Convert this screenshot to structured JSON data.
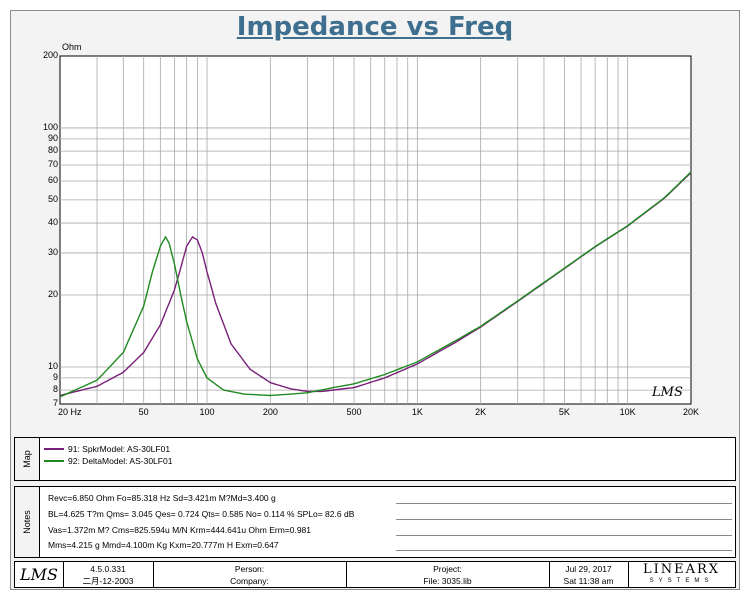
{
  "title": "Impedance vs Freq",
  "y_unit": "Ohm",
  "y_ticks": [
    "200",
    "100",
    "90",
    "80",
    "70",
    "60",
    "50",
    "40",
    "30",
    "20",
    "10",
    "9",
    "8",
    "7"
  ],
  "x_ticks": [
    "20 Hz",
    "50",
    "100",
    "200",
    "500",
    "1K",
    "2K",
    "5K",
    "10K",
    "20K"
  ],
  "watermark": "LMS",
  "legend": [
    {
      "label": "91: SpkrModel: AS-30LF01",
      "color": "#7a1f7a"
    },
    {
      "label": "92: DeltaModel: AS-30LF01",
      "color": "#1f8a1f"
    }
  ],
  "side_labels": {
    "map": "Map",
    "notes": "Notes"
  },
  "notes": [
    "Revc=6.850 Ohm  Fo=85.318 Hz  Sd=3.421m M?Md=3.400 g",
    "BL=4.625 T?m  Qms= 3.045  Qes= 0.724  Qts= 0.585  No= 0.114 %  SPLo= 82.6 dB",
    "Vas=1.372m M? Cms=825.594u M/N  Krm=444.641u Ohm  Erm=0.981",
    "Mms=4.215 g  Mmd=4.100m Kg  Kxm=20.777m H  Exm=0.647"
  ],
  "footer": {
    "logo": "LMS",
    "version": "4.5.0.331",
    "date_build": "二月-12-2003",
    "person": "Person:",
    "company": "Company:",
    "project": "Project:",
    "file": "File: 3035.lib",
    "date": "Jul 29, 2017",
    "time": "Sat 11:38 am",
    "brand": "LINEARX",
    "brand_sub": "SYSTEMS"
  },
  "colors": {
    "series1": "#7a1f7a",
    "series2": "#1f8a1f",
    "title": "#3f6f8f"
  },
  "chart_data": {
    "type": "line",
    "title": "Impedance vs Freq",
    "xlabel": "Hz",
    "ylabel": "Ohm",
    "xscale": "log",
    "yscale": "log",
    "xlim": [
      20,
      20000
    ],
    "ylim": [
      7,
      200
    ],
    "series": [
      {
        "name": "91: SpkrModel: AS-30LF01",
        "color": "#7a1f7a",
        "x": [
          20,
          30,
          40,
          50,
          60,
          70,
          75,
          80,
          85.3,
          90,
          95,
          100,
          110,
          130,
          160,
          200,
          250,
          300,
          350,
          500,
          700,
          1000,
          1500,
          2000,
          3000,
          5000,
          7000,
          10000,
          15000,
          20000
        ],
        "y": [
          7.6,
          8.3,
          9.5,
          11.5,
          15,
          21,
          26,
          32,
          35,
          34,
          30,
          25,
          18.5,
          12.5,
          9.8,
          8.6,
          8.1,
          7.9,
          7.9,
          8.2,
          9.0,
          10.3,
          12.6,
          14.7,
          18.8,
          25.8,
          31.8,
          38.9,
          51,
          65
        ]
      },
      {
        "name": "92: DeltaModel: AS-30LF01",
        "color": "#1f8a1f",
        "x": [
          20,
          30,
          40,
          50,
          55,
          60,
          63.5,
          66,
          70,
          75,
          80,
          90,
          100,
          120,
          150,
          200,
          250,
          300,
          400,
          500,
          700,
          1000,
          1500,
          2000,
          3000,
          5000,
          7000,
          10000,
          15000,
          20000
        ],
        "y": [
          7.5,
          8.8,
          11.5,
          18,
          25,
          32,
          35,
          33,
          27,
          20,
          15.5,
          10.8,
          9.0,
          8.0,
          7.7,
          7.6,
          7.7,
          7.8,
          8.2,
          8.5,
          9.3,
          10.5,
          12.8,
          14.8,
          18.9,
          25.9,
          31.9,
          39,
          51.2,
          65.5
        ]
      }
    ]
  }
}
